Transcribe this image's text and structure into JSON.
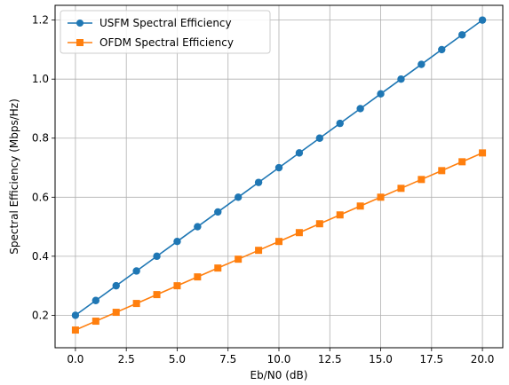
{
  "chart_data": {
    "type": "line",
    "xlabel": "Eb/N0 (dB)",
    "ylabel": "Spectral Efficiency (Mbps/Hz)",
    "xlim": [
      -1,
      21
    ],
    "ylim": [
      0.09,
      1.25
    ],
    "grid": true,
    "legend_position": "top-left",
    "x_ticks": [
      "0.0",
      "2.5",
      "5.0",
      "7.5",
      "10.0",
      "12.5",
      "15.0",
      "17.5",
      "20.0"
    ],
    "x_tick_values": [
      0,
      2.5,
      5,
      7.5,
      10,
      12.5,
      15,
      17.5,
      20
    ],
    "y_ticks": [
      "0.2",
      "0.4",
      "0.6",
      "0.8",
      "1.0",
      "1.2"
    ],
    "y_tick_values": [
      0.2,
      0.4,
      0.6,
      0.8,
      1.0,
      1.2
    ],
    "x": [
      0,
      1,
      2,
      3,
      4,
      5,
      6,
      7,
      8,
      9,
      10,
      11,
      12,
      13,
      14,
      15,
      16,
      17,
      18,
      19,
      20
    ],
    "series": [
      {
        "name": "USFM Spectral Efficiency",
        "color": "#1f77b4",
        "marker": "circle",
        "values": [
          0.2,
          0.25,
          0.3,
          0.35,
          0.4,
          0.45,
          0.5,
          0.55,
          0.6,
          0.65,
          0.7,
          0.75,
          0.8,
          0.85,
          0.9,
          0.95,
          1.0,
          1.05,
          1.1,
          1.15,
          1.2
        ]
      },
      {
        "name": "OFDM Spectral Efficiency",
        "color": "#ff7f0e",
        "marker": "square",
        "values": [
          0.15,
          0.18,
          0.21,
          0.24,
          0.27,
          0.3,
          0.33,
          0.36,
          0.39,
          0.42,
          0.45,
          0.48,
          0.51,
          0.54,
          0.57,
          0.6,
          0.63,
          0.66,
          0.69,
          0.72,
          0.75
        ]
      }
    ]
  }
}
